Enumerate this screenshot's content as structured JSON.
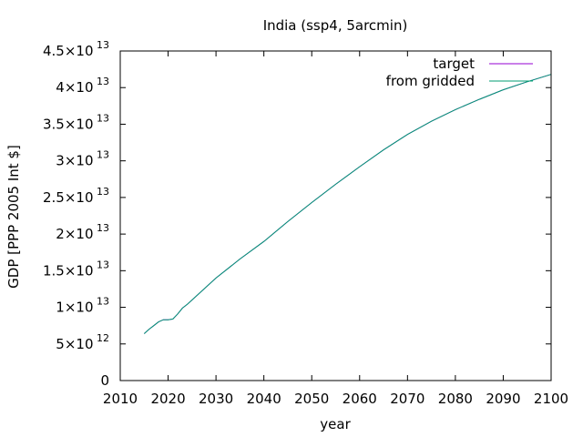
{
  "chart_data": {
    "type": "line",
    "title": "India (ssp4, 5arcmin)",
    "xlabel": "year",
    "ylabel": "GDP [PPP 2005 Int $]",
    "xlim": [
      2010,
      2100
    ],
    "ylim": [
      0,
      45000000000000
    ],
    "x_ticks": [
      2010,
      2020,
      2030,
      2040,
      2050,
      2060,
      2070,
      2080,
      2090,
      2100
    ],
    "y_ticks": [
      {
        "value": 0,
        "mantissa": "0",
        "exponent": ""
      },
      {
        "value": 5000000000000,
        "mantissa": "5×10",
        "exponent": "12"
      },
      {
        "value": 10000000000000,
        "mantissa": "1×10",
        "exponent": "13"
      },
      {
        "value": 15000000000000,
        "mantissa": "1.5×10",
        "exponent": "13"
      },
      {
        "value": 20000000000000,
        "mantissa": "2×10",
        "exponent": "13"
      },
      {
        "value": 25000000000000,
        "mantissa": "2.5×10",
        "exponent": "13"
      },
      {
        "value": 30000000000000,
        "mantissa": "3×10",
        "exponent": "13"
      },
      {
        "value": 35000000000000,
        "mantissa": "3.5×10",
        "exponent": "13"
      },
      {
        "value": 40000000000000,
        "mantissa": "4×10",
        "exponent": "13"
      },
      {
        "value": 45000000000000,
        "mantissa": "4.5×10",
        "exponent": "13"
      }
    ],
    "grid": false,
    "legend_position": "top-right",
    "series": [
      {
        "name": "target",
        "color": "#9400d3",
        "x": [
          2015,
          2016,
          2017,
          2018,
          2019,
          2020,
          2021,
          2022,
          2023,
          2024,
          2025,
          2030,
          2035,
          2040,
          2045,
          2050,
          2055,
          2060,
          2065,
          2070,
          2075,
          2080,
          2085,
          2090,
          2095,
          2100
        ],
        "y": [
          6400000000000,
          7000000000000,
          7500000000000,
          8000000000000,
          8300000000000,
          8300000000000,
          8400000000000,
          9100000000000,
          9900000000000,
          10400000000000,
          11000000000000,
          14000000000000,
          16600000000000,
          19000000000000,
          21700000000000,
          24300000000000,
          26800000000000,
          29200000000000,
          31500000000000,
          33600000000000,
          35400000000000,
          37000000000000,
          38400000000000,
          39700000000000,
          40800000000000,
          41800000000000
        ]
      },
      {
        "name": "from gridded",
        "color": "#009e73",
        "x": [
          2015,
          2016,
          2017,
          2018,
          2019,
          2020,
          2021,
          2022,
          2023,
          2024,
          2025,
          2030,
          2035,
          2040,
          2045,
          2050,
          2055,
          2060,
          2065,
          2070,
          2075,
          2080,
          2085,
          2090,
          2095,
          2100
        ],
        "y": [
          6400000000000,
          7000000000000,
          7500000000000,
          8000000000000,
          8300000000000,
          8300000000000,
          8400000000000,
          9100000000000,
          9900000000000,
          10400000000000,
          11000000000000,
          14000000000000,
          16600000000000,
          19000000000000,
          21700000000000,
          24300000000000,
          26800000000000,
          29200000000000,
          31500000000000,
          33600000000000,
          35400000000000,
          37000000000000,
          38400000000000,
          39700000000000,
          40800000000000,
          41800000000000
        ]
      }
    ]
  }
}
